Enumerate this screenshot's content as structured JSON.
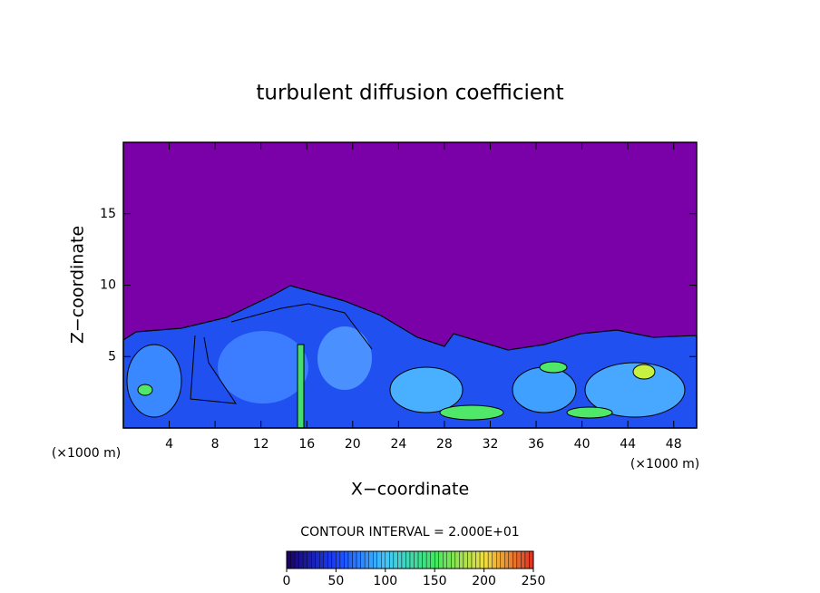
{
  "chart_data": {
    "type": "contour",
    "title": "turbulent diffusion coefficient",
    "x_label": "X−coordinate",
    "y_label": "Z−coordinate",
    "x_unit": "(×1000 m)",
    "xlim": [
      0,
      50
    ],
    "ylim": [
      0,
      20
    ],
    "xticks": [
      4,
      8,
      12,
      16,
      20,
      24,
      28,
      32,
      36,
      40,
      44,
      48
    ],
    "yticks": [
      5,
      10,
      15
    ],
    "contour_interval": "CONTOUR INTERVAL = 2.000E+01",
    "colorbar": {
      "lim": [
        0,
        250
      ],
      "ticks": [
        0,
        50,
        100,
        150,
        200,
        250
      ],
      "colors": [
        "#1a0066",
        "#1a40ff",
        "#40c8ff",
        "#40e860",
        "#f0e040",
        "#e03020"
      ]
    }
  }
}
